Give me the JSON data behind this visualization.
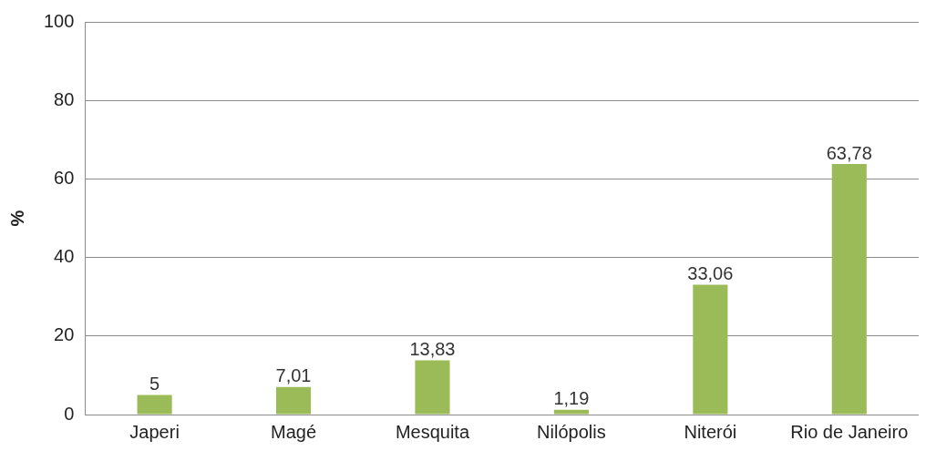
{
  "chart_data": {
    "type": "bar",
    "ylabel": "%",
    "categories": [
      "Japeri",
      "Magé",
      "Mesquita",
      "Nilópolis",
      "Niterói",
      "Rio de Janeiro"
    ],
    "values": [
      5,
      7.01,
      13.83,
      1.19,
      33.06,
      63.78
    ],
    "value_labels": [
      "5",
      "7,01",
      "13,83",
      "1,19",
      "33,06",
      "63,78"
    ],
    "color": "#9bbb59",
    "ylim": [
      0,
      100
    ],
    "yticks": [
      0,
      20,
      40,
      60,
      80,
      100
    ],
    "grid": "y",
    "legend": false
  }
}
